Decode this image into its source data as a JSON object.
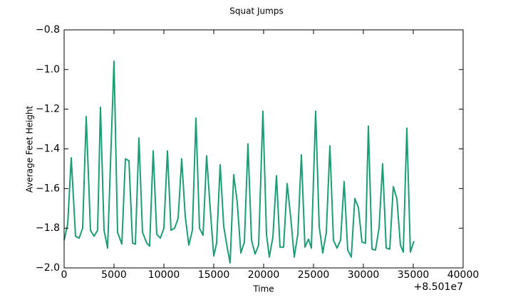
{
  "chart_data": {
    "type": "line",
    "title": "Squat Jumps",
    "x_label": "Time",
    "y_label": "Average Feet Height",
    "x_offset_label": "+8.501e7",
    "x": [
      0,
      357,
      714,
      1143,
      1500,
      1857,
      2214,
      2643,
      3000,
      3357,
      3643,
      4000,
      4357,
      5000,
      5357,
      5786,
      6143,
      6500,
      6857,
      7143,
      7500,
      7857,
      8286,
      8571,
      8929,
      9286,
      9643,
      10000,
      10357,
      10714,
      11071,
      11429,
      11786,
      12143,
      12500,
      12857,
      13214,
      13571,
      13929,
      14286,
      14643,
      15000,
      15286,
      15643,
      16000,
      16357,
      16643,
      17000,
      17357,
      17714,
      18071,
      18429,
      18786,
      19143,
      19500,
      19929,
      20286,
      20571,
      20929,
      21286,
      21643,
      22000,
      22357,
      22714,
      23071,
      23429,
      23786,
      24143,
      24500,
      24786,
      25214,
      25571,
      25929,
      26286,
      26643,
      27000,
      27357,
      27714,
      28071,
      28429,
      28786,
      29143,
      29500,
      29857,
      30214,
      30500,
      30857,
      31214,
      31571,
      31929,
      32286,
      32643,
      33000,
      33357,
      33714,
      34000,
      34357,
      34714,
      35071
    ],
    "series": [
      {
        "name": "Average Feet Height",
        "color": "#1b9e77",
        "values": [
          -1.861,
          -1.78,
          -1.445,
          -1.84,
          -1.85,
          -1.8,
          -1.237,
          -1.81,
          -1.84,
          -1.81,
          -1.19,
          -1.81,
          -1.9,
          -0.958,
          -1.82,
          -1.88,
          -1.45,
          -1.46,
          -1.875,
          -1.88,
          -1.345,
          -1.82,
          -1.875,
          -1.89,
          -1.41,
          -1.83,
          -1.85,
          -1.8,
          -1.41,
          -1.81,
          -1.8,
          -1.75,
          -1.45,
          -1.74,
          -1.885,
          -1.81,
          -1.245,
          -1.8,
          -1.835,
          -1.435,
          -1.7,
          -1.94,
          -1.875,
          -1.48,
          -1.79,
          -1.9,
          -1.975,
          -1.53,
          -1.67,
          -1.925,
          -1.87,
          -1.375,
          -1.86,
          -1.93,
          -1.885,
          -1.21,
          -1.83,
          -1.945,
          -1.845,
          -1.535,
          -1.895,
          -1.895,
          -1.575,
          -1.745,
          -1.945,
          -1.83,
          -1.43,
          -1.895,
          -1.855,
          -1.9,
          -1.21,
          -1.79,
          -1.925,
          -1.82,
          -1.385,
          -1.86,
          -1.9,
          -1.86,
          -1.565,
          -1.91,
          -1.945,
          -1.65,
          -1.695,
          -1.87,
          -1.875,
          -1.285,
          -1.905,
          -1.91,
          -1.8,
          -1.475,
          -1.9,
          -1.905,
          -1.59,
          -1.65,
          -1.885,
          -1.92,
          -1.295,
          -1.92,
          -1.865
        ]
      }
    ],
    "xlim": [
      0,
      40000
    ],
    "xticks": [
      0,
      5000,
      10000,
      15000,
      20000,
      25000,
      30000,
      35000,
      40000
    ],
    "ylim": [
      -2.0,
      -0.8
    ],
    "yticks": [
      {
        "value": -2.0,
        "label": "−2.0"
      },
      {
        "value": -1.8,
        "label": "−1.8"
      },
      {
        "value": -1.6,
        "label": "−1.6"
      },
      {
        "value": -1.4,
        "label": "−1.4"
      },
      {
        "value": -1.2,
        "label": "−1.2"
      },
      {
        "value": -1.0,
        "label": "−1.0"
      },
      {
        "value": -0.8,
        "label": "−0.8"
      }
    ],
    "grid": false
  }
}
